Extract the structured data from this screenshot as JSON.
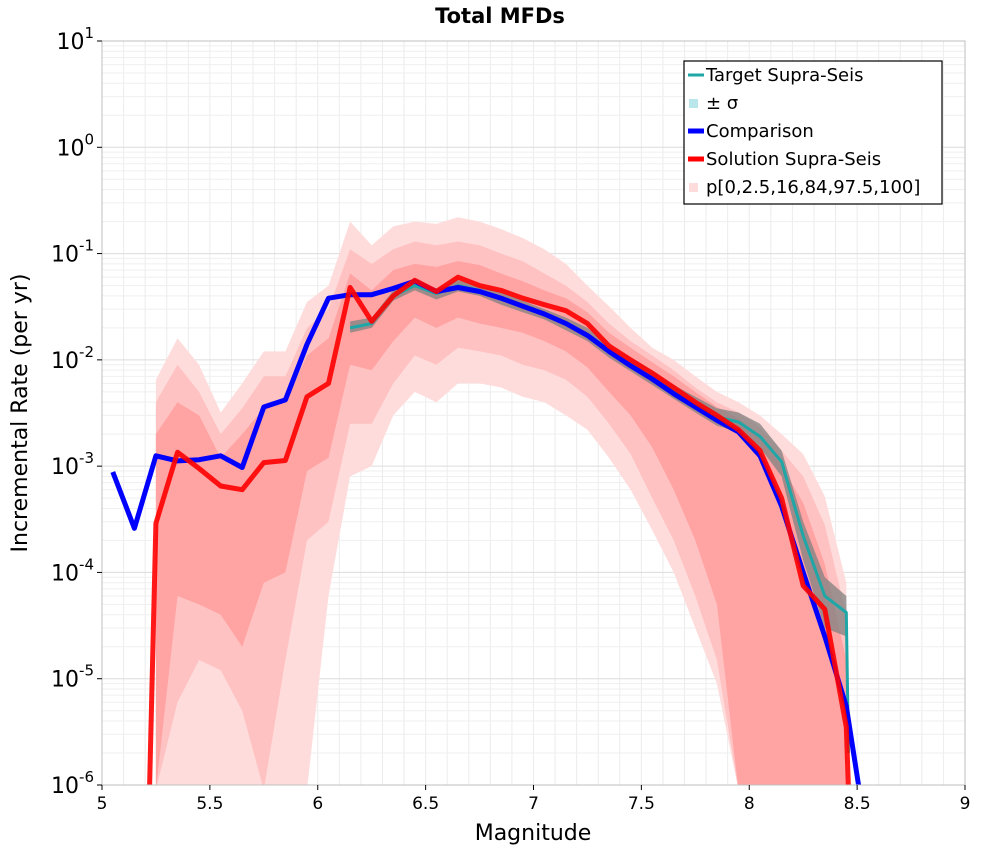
{
  "chart_data": {
    "type": "line",
    "title": "Total MFDs",
    "xlabel": "Magnitude",
    "ylabel": "Incremental Rate (per yr)",
    "xlim": [
      5,
      9
    ],
    "ylim_exponents": [
      -6,
      1
    ],
    "y_scale": "log",
    "x_ticks": [
      "5",
      "5.5",
      "6",
      "6.5",
      "7",
      "7.5",
      "8",
      "8.5",
      "9"
    ],
    "y_tick_base": "10",
    "y_tick_exponents": [
      "-6",
      "-5",
      "-4",
      "-3",
      "-2",
      "-1",
      "0",
      "1"
    ],
    "grid": true,
    "legend_position": "top-right",
    "legend": [
      {
        "label": "Target Supra-Seis",
        "kind": "line",
        "color": "#1fa6a6"
      },
      {
        "label": "± σ",
        "kind": "swatch",
        "color": "#b8e6ea"
      },
      {
        "label": "Comparison",
        "kind": "line",
        "color": "#0000ff"
      },
      {
        "label": "Solution Supra-Seis",
        "kind": "line",
        "color": "#ff0000"
      },
      {
        "label": "p[0,2.5,16,84,97.5,100]",
        "kind": "swatch",
        "color": "#ffdcdc"
      }
    ],
    "colors": {
      "target": "#1fa6a6",
      "sigma_band": "#808080",
      "comparison": "#0000ff",
      "solution": "#ff0000",
      "band_outer": "#ffdcdc",
      "band_mid": "#ffc2c2",
      "band_inner": "#ffa3a3"
    },
    "target_x": [
      6.15,
      6.25,
      6.35,
      6.45,
      6.55,
      6.65,
      6.75,
      6.85,
      6.95,
      7.05,
      7.15,
      7.25,
      7.35,
      7.45,
      7.55,
      7.65,
      7.75,
      7.85,
      7.95,
      8.05,
      8.15,
      8.25,
      8.35,
      8.45,
      8.46
    ],
    "target_y": [
      0.02,
      0.022,
      0.04,
      0.05,
      0.042,
      0.05,
      0.045,
      0.038,
      0.032,
      0.027,
      0.022,
      0.017,
      0.012,
      0.009,
      0.0068,
      0.005,
      0.0038,
      0.0029,
      0.0026,
      0.0019,
      0.0011,
      0.00022,
      6e-05,
      4.2e-05,
      2e-06
    ],
    "sigma_lower": [
      0.018,
      0.02,
      0.036,
      0.045,
      0.037,
      0.044,
      0.04,
      0.033,
      0.028,
      0.024,
      0.019,
      0.015,
      0.0105,
      0.0078,
      0.0058,
      0.0043,
      0.0032,
      0.0024,
      0.0021,
      0.0015,
      0.0008,
      0.00013,
      3e-05,
      2.5e-05,
      1e-06
    ],
    "sigma_upper": [
      0.023,
      0.025,
      0.045,
      0.056,
      0.047,
      0.056,
      0.05,
      0.043,
      0.036,
      0.03,
      0.025,
      0.02,
      0.0135,
      0.0105,
      0.008,
      0.0058,
      0.0045,
      0.0035,
      0.0032,
      0.0025,
      0.0014,
      0.0003,
      9e-05,
      6e-05,
      3e-06
    ],
    "comparison_x": [
      5.05,
      5.15,
      5.25,
      5.35,
      5.45,
      5.55,
      5.65,
      5.75,
      5.85,
      5.95,
      6.05,
      6.15,
      6.25,
      6.35,
      6.45,
      6.55,
      6.65,
      6.75,
      6.85,
      6.95,
      7.05,
      7.15,
      7.25,
      7.35,
      7.45,
      7.55,
      7.65,
      7.75,
      7.85,
      7.95,
      8.05,
      8.15,
      8.25,
      8.35,
      8.45,
      8.51
    ],
    "comparison_y": [
      0.00088,
      0.00026,
      0.00125,
      0.00112,
      0.00115,
      0.00125,
      0.00097,
      0.0036,
      0.0042,
      0.014,
      0.038,
      0.041,
      0.041,
      0.047,
      0.055,
      0.044,
      0.048,
      0.044,
      0.038,
      0.032,
      0.027,
      0.022,
      0.017,
      0.012,
      0.0088,
      0.0066,
      0.0048,
      0.0036,
      0.0027,
      0.0021,
      0.00125,
      0.00042,
      0.0001,
      2.5e-05,
      5.5e-06,
      9e-07
    ],
    "solution_x": [
      5.22,
      5.25,
      5.35,
      5.45,
      5.55,
      5.65,
      5.75,
      5.85,
      5.95,
      6.05,
      6.15,
      6.25,
      6.35,
      6.45,
      6.55,
      6.65,
      6.75,
      6.85,
      6.95,
      7.05,
      7.15,
      7.25,
      7.35,
      7.45,
      7.55,
      7.65,
      7.75,
      7.85,
      7.95,
      8.05,
      8.15,
      8.25,
      8.35,
      8.45,
      8.46
    ],
    "solution_y": [
      9e-07,
      0.00029,
      0.00135,
      0.00095,
      0.00065,
      0.0006,
      0.00108,
      0.00113,
      0.0045,
      0.006,
      0.048,
      0.023,
      0.04,
      0.056,
      0.044,
      0.06,
      0.05,
      0.045,
      0.038,
      0.033,
      0.029,
      0.022,
      0.0135,
      0.01,
      0.0075,
      0.0055,
      0.004,
      0.003,
      0.0022,
      0.0014,
      0.0005,
      7.5e-05,
      4.5e-05,
      3.5e-06,
      9e-07
    ],
    "band_x": [
      5.25,
      5.35,
      5.45,
      5.55,
      5.65,
      5.75,
      5.85,
      5.95,
      6.05,
      6.15,
      6.25,
      6.35,
      6.45,
      6.55,
      6.65,
      6.75,
      6.85,
      6.95,
      7.05,
      7.15,
      7.25,
      7.35,
      7.45,
      7.55,
      7.65,
      7.75,
      7.85,
      7.95,
      8.05,
      8.15,
      8.25,
      8.35,
      8.45
    ],
    "band_outer_upper": [
      0.0065,
      0.016,
      0.009,
      0.0032,
      0.006,
      0.012,
      0.012,
      0.035,
      0.05,
      0.2,
      0.12,
      0.18,
      0.2,
      0.19,
      0.22,
      0.2,
      0.17,
      0.14,
      0.11,
      0.08,
      0.05,
      0.032,
      0.02,
      0.013,
      0.01,
      0.007,
      0.005,
      0.004,
      0.003,
      0.002,
      0.0013,
      0.00052,
      8e-05
    ],
    "band_outer_lower": [
      9e-07,
      9e-07,
      9e-07,
      9e-07,
      9e-07,
      9e-07,
      9e-07,
      9e-07,
      6e-05,
      0.0008,
      0.001,
      0.003,
      0.005,
      0.004,
      0.006,
      0.006,
      0.0055,
      0.0045,
      0.004,
      0.003,
      0.0022,
      0.0012,
      0.0006,
      0.00025,
      0.0001,
      3e-05,
      9e-06,
      9e-07,
      9e-07,
      9e-07,
      9e-07,
      9e-07,
      9e-07
    ],
    "band_mid_upper": [
      0.004,
      0.009,
      0.005,
      0.002,
      0.0035,
      0.007,
      0.007,
      0.02,
      0.03,
      0.11,
      0.08,
      0.11,
      0.13,
      0.12,
      0.13,
      0.12,
      0.1,
      0.085,
      0.065,
      0.05,
      0.035,
      0.022,
      0.015,
      0.011,
      0.008,
      0.0055,
      0.004,
      0.0032,
      0.0023,
      0.0014,
      0.0008,
      0.00028,
      4e-05
    ],
    "band_mid_lower": [
      9e-07,
      6e-06,
      1.5e-05,
      1.2e-05,
      5e-06,
      9e-07,
      1.5e-05,
      0.0002,
      0.0003,
      0.0025,
      0.0025,
      0.006,
      0.011,
      0.009,
      0.013,
      0.012,
      0.011,
      0.009,
      0.008,
      0.0065,
      0.0045,
      0.0025,
      0.0013,
      0.0005,
      0.0002,
      6e-05,
      1.5e-05,
      9e-07,
      9e-07,
      9e-07,
      9e-07,
      9e-07,
      9e-07
    ],
    "band_inner_upper": [
      0.002,
      0.004,
      0.003,
      0.0012,
      0.002,
      0.0035,
      0.004,
      0.011,
      0.016,
      0.065,
      0.045,
      0.07,
      0.08,
      0.075,
      0.085,
      0.078,
      0.065,
      0.055,
      0.045,
      0.038,
      0.028,
      0.018,
      0.013,
      0.0095,
      0.007,
      0.005,
      0.0036,
      0.0028,
      0.0019,
      0.001,
      0.00045,
      0.00012,
      1.5e-05
    ],
    "band_inner_lower": [
      9e-07,
      6e-05,
      5e-05,
      4e-05,
      2e-05,
      8e-05,
      0.0001,
      0.0009,
      0.0012,
      0.009,
      0.008,
      0.015,
      0.025,
      0.02,
      0.025,
      0.022,
      0.02,
      0.018,
      0.015,
      0.012,
      0.0085,
      0.005,
      0.003,
      0.0015,
      0.0006,
      0.0002,
      5e-05,
      9e-07,
      9e-07,
      9e-07,
      9e-07,
      9e-07,
      9e-07
    ]
  }
}
